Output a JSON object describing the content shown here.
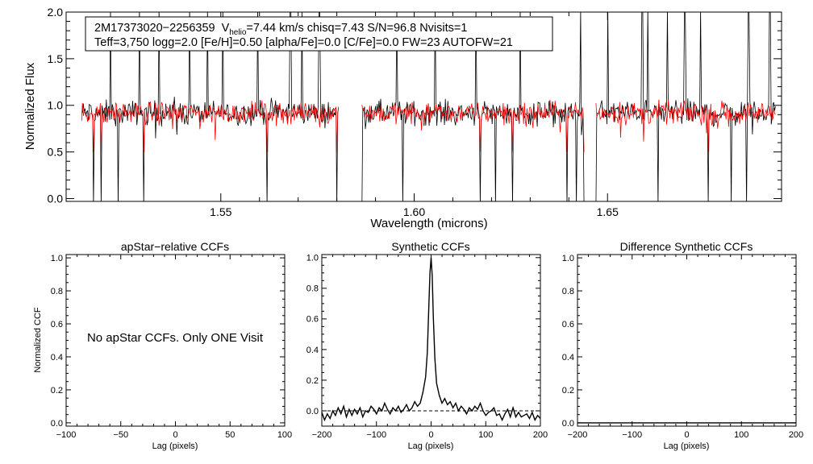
{
  "chart_data": [
    {
      "type": "line",
      "name": "spectrum",
      "ylabel": "Normalized Flux",
      "xlabel": "Wavelength (microns)",
      "xlim": [
        1.51,
        1.695
      ],
      "ylim": [
        -0.03,
        2.0
      ],
      "xticks": [
        1.55,
        1.6,
        1.65
      ],
      "xtick_labels": [
        "1.55",
        "1.60",
        "1.65"
      ],
      "yticks": [
        0.0,
        0.5,
        1.0,
        1.5,
        2.0
      ],
      "ytick_labels": [
        "0.0",
        "0.5",
        "1.0",
        "1.5",
        "2.0"
      ],
      "info_box": {
        "line1_id": "2M17373020−2256359",
        "v_label": "V",
        "v_sub": "helio",
        "line1_rest": "=7.44 km/s  chisq=7.43  S/N=96.8  Nvisits=1",
        "line2": "Teff=3,750 logg=2.0 [Fe/H]=0.50 [alpha/Fe]=0.0 [C/Fe]=0.0 FW=23 AUTOFW=21"
      },
      "chips": [
        [
          1.514,
          1.5805
        ],
        [
          1.5865,
          1.644
        ],
        [
          1.647,
          1.6935
        ]
      ],
      "series": [
        {
          "name": "observed",
          "color": "#000000",
          "level": 0.92,
          "noise": 0.1
        },
        {
          "name": "model",
          "color": "#ff0000",
          "level": 0.92,
          "noise": 0.09
        }
      ],
      "emission_spikes": [
        1.5215,
        1.529,
        1.534,
        1.542,
        1.5465,
        1.5505,
        1.5595,
        1.568,
        1.571,
        1.5755,
        1.5955,
        1.6055,
        1.616,
        1.6275,
        1.6395,
        1.643,
        1.65,
        1.659,
        1.6605,
        1.6655,
        1.67,
        1.674,
        1.6865,
        1.692
      ],
      "absorption_dips": [
        1.517,
        1.519,
        1.5235,
        1.53,
        1.562,
        1.58,
        1.5865,
        1.597,
        1.617,
        1.621,
        1.6255,
        1.6395,
        1.642,
        1.644,
        1.647,
        1.663,
        1.676,
        1.682,
        1.686
      ]
    },
    {
      "type": "line",
      "name": "apstar-ccf",
      "title": "apStar−relative CCFs",
      "ylabel": "Normalized CCF",
      "xlabel": "Lag (pixels)",
      "xlim": [
        -100,
        100
      ],
      "ylim": [
        -0.02,
        1.02
      ],
      "xticks": [
        -100,
        -50,
        0,
        50,
        100
      ],
      "xtick_labels": [
        "−100",
        "−50",
        "0",
        "50",
        "100"
      ],
      "yticks": [
        0.0,
        0.2,
        0.4,
        0.6,
        0.8,
        1.0
      ],
      "ytick_labels": [
        "0.0",
        "0.2",
        "0.4",
        "0.6",
        "0.8",
        "1.0"
      ],
      "annotation": "No apStar CCFs.  Only ONE Visit"
    },
    {
      "type": "line",
      "name": "synthetic-ccf",
      "title": "Synthetic CCFs",
      "xlabel": "Lag (pixels)",
      "xlim": [
        -200,
        200
      ],
      "ylim": [
        -0.1,
        1.02
      ],
      "xticks": [
        -200,
        -100,
        0,
        100,
        200
      ],
      "xtick_labels": [
        "−200",
        "−100",
        "0",
        "100",
        "200"
      ],
      "yticks": [
        0.0,
        0.2,
        0.4,
        0.6,
        0.8,
        1.0
      ],
      "ytick_labels": [
        "0.0",
        "0.2",
        "0.4",
        "0.6",
        "0.8",
        "1.0"
      ],
      "baseline": 0.0,
      "peak": {
        "x": 0,
        "y": 1.0
      },
      "points": [
        [
          -200,
          -0.01
        ],
        [
          -195,
          -0.06
        ],
        [
          -190,
          -0.02
        ],
        [
          -185,
          -0.05
        ],
        [
          -180,
          0.0
        ],
        [
          -175,
          -0.03
        ],
        [
          -170,
          0.02
        ],
        [
          -165,
          -0.02
        ],
        [
          -160,
          0.03
        ],
        [
          -155,
          -0.04
        ],
        [
          -150,
          0.01
        ],
        [
          -145,
          -0.03
        ],
        [
          -140,
          0.01
        ],
        [
          -135,
          -0.02
        ],
        [
          -130,
          0.02
        ],
        [
          -125,
          -0.04
        ],
        [
          -120,
          0.0
        ],
        [
          -115,
          -0.01
        ],
        [
          -110,
          0.03
        ],
        [
          -105,
          0.01
        ],
        [
          -100,
          -0.02
        ],
        [
          -95,
          0.02
        ],
        [
          -90,
          0.0
        ],
        [
          -85,
          0.05
        ],
        [
          -80,
          0.01
        ],
        [
          -75,
          -0.02
        ],
        [
          -70,
          0.02
        ],
        [
          -65,
          0.0
        ],
        [
          -60,
          0.03
        ],
        [
          -55,
          -0.01
        ],
        [
          -50,
          0.01
        ],
        [
          -45,
          0.04
        ],
        [
          -40,
          0.0
        ],
        [
          -35,
          0.02
        ],
        [
          -30,
          0.06
        ],
        [
          -25,
          0.03
        ],
        [
          -20,
          0.05
        ],
        [
          -15,
          0.12
        ],
        [
          -10,
          0.22
        ],
        [
          -7,
          0.38
        ],
        [
          -4,
          0.7
        ],
        [
          -2,
          0.9
        ],
        [
          0,
          1.0
        ],
        [
          2,
          0.88
        ],
        [
          4,
          0.62
        ],
        [
          7,
          0.34
        ],
        [
          10,
          0.18
        ],
        [
          15,
          0.1
        ],
        [
          20,
          0.05
        ],
        [
          25,
          0.08
        ],
        [
          30,
          0.04
        ],
        [
          35,
          0.06
        ],
        [
          40,
          0.02
        ],
        [
          45,
          0.05
        ],
        [
          50,
          0.0
        ],
        [
          55,
          0.03
        ],
        [
          60,
          0.01
        ],
        [
          65,
          -0.02
        ],
        [
          70,
          0.02
        ],
        [
          75,
          0.0
        ],
        [
          80,
          0.03
        ],
        [
          85,
          0.01
        ],
        [
          90,
          0.05
        ],
        [
          95,
          0.0
        ],
        [
          100,
          -0.03
        ],
        [
          105,
          -0.01
        ],
        [
          110,
          0.0
        ],
        [
          115,
          0.02
        ],
        [
          120,
          -0.03
        ],
        [
          125,
          -0.02
        ],
        [
          130,
          -0.06
        ],
        [
          135,
          -0.02
        ],
        [
          140,
          0.01
        ],
        [
          145,
          -0.04
        ],
        [
          150,
          0.02
        ],
        [
          155,
          -0.04
        ],
        [
          160,
          -0.01
        ],
        [
          165,
          -0.04
        ],
        [
          170,
          -0.03
        ],
        [
          175,
          -0.02
        ],
        [
          180,
          -0.05
        ],
        [
          185,
          -0.01
        ],
        [
          190,
          -0.06
        ],
        [
          195,
          -0.03
        ],
        [
          200,
          -0.05
        ]
      ]
    },
    {
      "type": "line",
      "name": "difference-ccf",
      "title": "Difference Synthetic CCFs",
      "xlabel": "Lag (pixels)",
      "xlim": [
        -200,
        200
      ],
      "ylim": [
        -0.02,
        1.02
      ],
      "xticks": [
        -200,
        -100,
        0,
        100,
        200
      ],
      "xtick_labels": [
        "−200",
        "−100",
        "0",
        "100",
        "200"
      ],
      "yticks": [
        0.0,
        0.2,
        0.4,
        0.6,
        0.8,
        1.0
      ],
      "ytick_labels": [
        "0.0",
        "0.2",
        "0.4",
        "0.6",
        "0.8",
        "1.0"
      ],
      "points": [
        [
          -200,
          0.0
        ],
        [
          200,
          0.0
        ]
      ]
    }
  ]
}
